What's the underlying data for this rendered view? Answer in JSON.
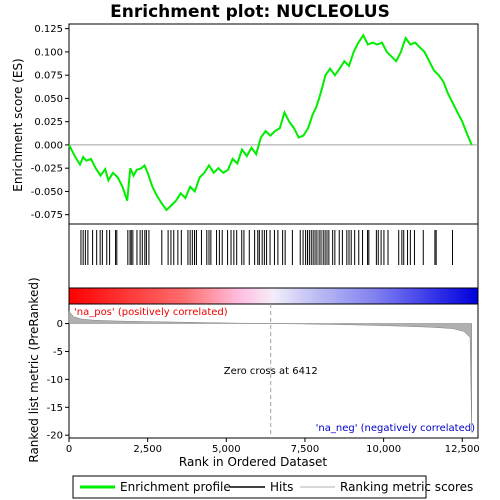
{
  "chart_data": {
    "type": "line",
    "title": "Enrichment plot: NUCLEOLUS",
    "xlabel": "Rank in Ordered Dataset",
    "ylabel_top": "Enrichment score (ES)",
    "ylabel_bottom": "Ranked list metric (PreRanked)",
    "xlim": [
      0,
      13000
    ],
    "x_ticks": [
      0,
      2500,
      5000,
      7500,
      10000,
      12500
    ],
    "x_tick_labels": [
      "0",
      "2,500",
      "5,000",
      "7,500",
      "10,000",
      "12,500"
    ],
    "es_ylim": [
      -0.085,
      0.13
    ],
    "es_ticks": [
      -0.075,
      -0.05,
      -0.025,
      0.0,
      0.025,
      0.05,
      0.075,
      0.1,
      0.125
    ],
    "es_tick_labels": [
      "-0.075",
      "-0.050",
      "-0.025",
      "0.000",
      "0.025",
      "0.050",
      "0.075",
      "0.100",
      "0.125"
    ],
    "metric_ylim": [
      -20.5,
      3.5
    ],
    "metric_ticks": [
      0,
      -5,
      -10,
      -15,
      -20
    ],
    "metric_tick_labels": [
      "0",
      "-5",
      "-10",
      "-15",
      "-20"
    ],
    "zero_cross": 6412,
    "zero_cross_label": "Zero cross at 6412",
    "pos_label": "'na_pos' (positively correlated)",
    "neg_label": "'na_neg' (negatively correlated)",
    "es_curve": {
      "x": [
        0,
        200,
        350,
        450,
        550,
        700,
        850,
        1000,
        1150,
        1250,
        1400,
        1550,
        1700,
        1850,
        1950,
        2050,
        2150,
        2300,
        2400,
        2500,
        2650,
        2800,
        2950,
        3100,
        3250,
        3400,
        3550,
        3700,
        3850,
        4000,
        4150,
        4300,
        4450,
        4600,
        4750,
        4900,
        5050,
        5200,
        5350,
        5500,
        5650,
        5800,
        5950,
        6100,
        6250,
        6400,
        6550,
        6700,
        6850,
        7000,
        7150,
        7300,
        7450,
        7600,
        7750,
        7850,
        7950,
        8050,
        8150,
        8300,
        8450,
        8600,
        8750,
        8900,
        9050,
        9200,
        9350,
        9500,
        9650,
        9800,
        9950,
        10100,
        10250,
        10400,
        10550,
        10700,
        10850,
        11000,
        11150,
        11300,
        11450,
        11600,
        11750,
        11900,
        12050,
        12200,
        12350,
        12500,
        12650,
        12800
      ],
      "y": [
        0.0,
        -0.013,
        -0.021,
        -0.013,
        -0.017,
        -0.015,
        -0.025,
        -0.033,
        -0.026,
        -0.038,
        -0.03,
        -0.035,
        -0.045,
        -0.06,
        -0.025,
        -0.033,
        -0.027,
        -0.025,
        -0.022,
        -0.03,
        -0.045,
        -0.055,
        -0.063,
        -0.07,
        -0.065,
        -0.06,
        -0.052,
        -0.057,
        -0.045,
        -0.05,
        -0.035,
        -0.03,
        -0.022,
        -0.03,
        -0.025,
        -0.03,
        -0.027,
        -0.015,
        -0.02,
        -0.005,
        -0.012,
        -0.003,
        -0.01,
        0.008,
        0.015,
        0.01,
        0.015,
        0.018,
        0.035,
        0.025,
        0.018,
        0.008,
        0.01,
        0.018,
        0.033,
        0.04,
        0.05,
        0.062,
        0.075,
        0.082,
        0.075,
        0.082,
        0.09,
        0.085,
        0.1,
        0.11,
        0.118,
        0.108,
        0.11,
        0.108,
        0.11,
        0.1,
        0.095,
        0.09,
        0.1,
        0.115,
        0.108,
        0.11,
        0.105,
        0.1,
        0.09,
        0.08,
        0.075,
        0.068,
        0.055,
        0.045,
        0.035,
        0.025,
        0.012,
        0.0
      ]
    },
    "hits": [
      380,
      450,
      520,
      600,
      750,
      880,
      990,
      1060,
      1200,
      1290,
      1480,
      1520,
      1870,
      1940,
      1980,
      2030,
      2160,
      2260,
      2330,
      2410,
      2460,
      2540,
      2950,
      3150,
      3240,
      3330,
      3460,
      3570,
      3780,
      3850,
      3920,
      3990,
      4050,
      4210,
      4380,
      4450,
      4510,
      4690,
      4780,
      4870,
      5040,
      5150,
      5240,
      5330,
      5490,
      5560,
      5730,
      5900,
      6000,
      6050,
      6140,
      6210,
      6280,
      6390,
      6530,
      6640,
      6790,
      6870,
      7100,
      7350,
      7440,
      7520,
      7580,
      7640,
      7700,
      7760,
      7820,
      7880,
      7950,
      8010,
      8080,
      8140,
      8200,
      8260,
      8380,
      8450,
      8590,
      8690,
      8830,
      8900,
      8970,
      9080,
      9210,
      9330,
      9490,
      9530,
      9770,
      9830,
      9920,
      10010,
      10140,
      10480,
      10580,
      10640,
      10760,
      10850,
      10980,
      11260,
      11630,
      11670,
      12190
    ],
    "metric": {
      "x": [
        0,
        150,
        400,
        800,
        1500,
        2500,
        3500,
        4500,
        5500,
        6412,
        7500,
        8500,
        9500,
        10500,
        11500,
        12200,
        12550,
        12750,
        12800
      ],
      "y": [
        2.2,
        1.2,
        0.8,
        0.6,
        0.45,
        0.35,
        0.25,
        0.15,
        0.07,
        0.0,
        -0.08,
        -0.18,
        -0.3,
        -0.45,
        -0.65,
        -0.9,
        -1.4,
        -2.5,
        -19.5
      ]
    },
    "legend": [
      "Enrichment profile",
      "Hits",
      "Ranking metric scores"
    ],
    "colors": {
      "es_line": "#00ee00",
      "hit": "#000000",
      "metric_fill": "#b0b0b0",
      "pos_label": "#ee0000",
      "neg_label": "#0000cc",
      "zero_line": "#a0a0a0",
      "bar_pos": "#ff0000",
      "bar_neg": "#0000ff"
    }
  }
}
